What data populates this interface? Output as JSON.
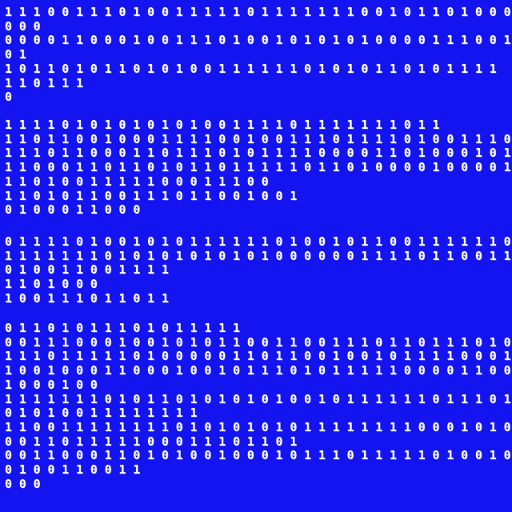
{
  "screen": {
    "description": "Full-screen binary digit dump, white monospace digits on blue background",
    "background_color": "#1414F0",
    "text_color": "#FFFFFF"
  },
  "binary_display": {
    "blocks": [
      {
        "lines": [
          "1 1 1 0 0 1 1 1 0 1 0 0 1 1 1 1 1 0 1 1 1 1 1 1 1 0 0 1 0 1 1 0 1 0 0 0",
          "0 0 0",
          "0 0 0 0 1 1 0 0 0 1 0 0 1 1 1 0 1 0 0 1 0 1 0 1 0 1 0 0 0 0 1 1 1 0 0 1",
          "0 1",
          "1 0 1 1 0 1 0 1 1 0 1 0 1 0 0 1 1 1 1 1 1 0 1 0 1 0 1 1 0 1 0 1 1 1 1",
          "1 1 0 1 1 1",
          "0"
        ]
      },
      {
        "lines": [
          "1 1 1 1 0 1 0 1 0 1 0 1 0 1 0 0 1 1 1 1 0 1 1 1 1 1 1 1 0 1 1",
          "1 1 0 1 1 0 0 1 0 0 0 1 1 1 1 0 0 1 0 0 1 1 1 0 1 1 1 1 0 1 0 0 1 1 1 0",
          "1 1 1 0 1 1 0 0 0 1 1 0 1 1 1 0 1 0 1 1 1 1 0 0 0 0 1 1 0 1 0 0 0 1 0 1",
          "1 1 0 0 0 1 1 0 1 1 0 1 0 1 1 0 1 1 1 1 1 0 1 1 0 1 0 0 0 0 1 0 0 0 0 1",
          "1 1 0 1 0 0 1 1 1 1 1 0 0 0 1 1 1 0 0",
          "1 1 0 1 0 1 1 0 0 1 1 1 0 1 1 0 0 1 0 0 1",
          "0 1 0 0 0 1 1 0 0 0"
        ]
      },
      {
        "lines": [
          "0 1 1 1 1 0 1 0 0 1 0 1 0 1 1 1 1 1 1 0 1 0 0 1 0 1 1 0 0 1 1 1 1 1 1 0",
          "1 1 1 1 1 1 1 0 1 0 1 0 1 0 1 0 1 0 1 0 0 0 0 0 0 1 1 1 1 0 1 1 0 0 1 1",
          "0 1 0 0 1 1 0 0 1 1 1 1",
          "1 1 0 1 0 0 0",
          "1 0 0 1 1 1 0 1 1 0 1 1"
        ]
      },
      {
        "lines": [
          "0 1 1 0 1 0 1 1 1 0 1 0 1 1 1 1 1",
          "0 0 1 1 1 0 0 0 1 0 0 1 0 1 0 1 1 0 0 1 1 0 0 1 1 1 0 1 1 0 1 1 1 0 1 0",
          "1 1 1 0 1 1 1 1 1 0 1 0 0 0 0 0 1 1 0 1 1 0 0 1 0 0 1 0 1 1 1 1 0 0 0 1",
          "1 0 0 1 0 0 0 1 1 0 0 0 1 0 0 1 0 1 1 1 0 1 0 1 1 1 1 1 0 0 0 0 1 1 0 0",
          "1 0 0 0 1 0 0",
          "1 1 1 1 1 1 1 0 1 0 1 1 0 1 0 1 0 1 0 1 0 0 1 0 1 1 1 1 1 1 0 1 1 1 0 1",
          "0 1 0 1 0 0 1 1 1 1 1 1 1 1",
          "1 1 0 0 1 1 1 1 1 1 1 1 0 1 0 1 0 1 0 1 0 1 1 1 1 1 1 1 1 0 0 0 1 0 1 0",
          "0 0 1 1 0 1 1 1 1 1 0 0 0 1 1 1 0 1 1 0 1",
          "0 0 1 1 0 0 0 1 1 0 1 0 1 0 0 1 0 0 0 1 0 1 1 1 0 1 1 1 1 1 0 1 0 0 1 0",
          "0 1 0 0 1 1 0 0 1 1",
          "0 0 0"
        ]
      }
    ]
  }
}
